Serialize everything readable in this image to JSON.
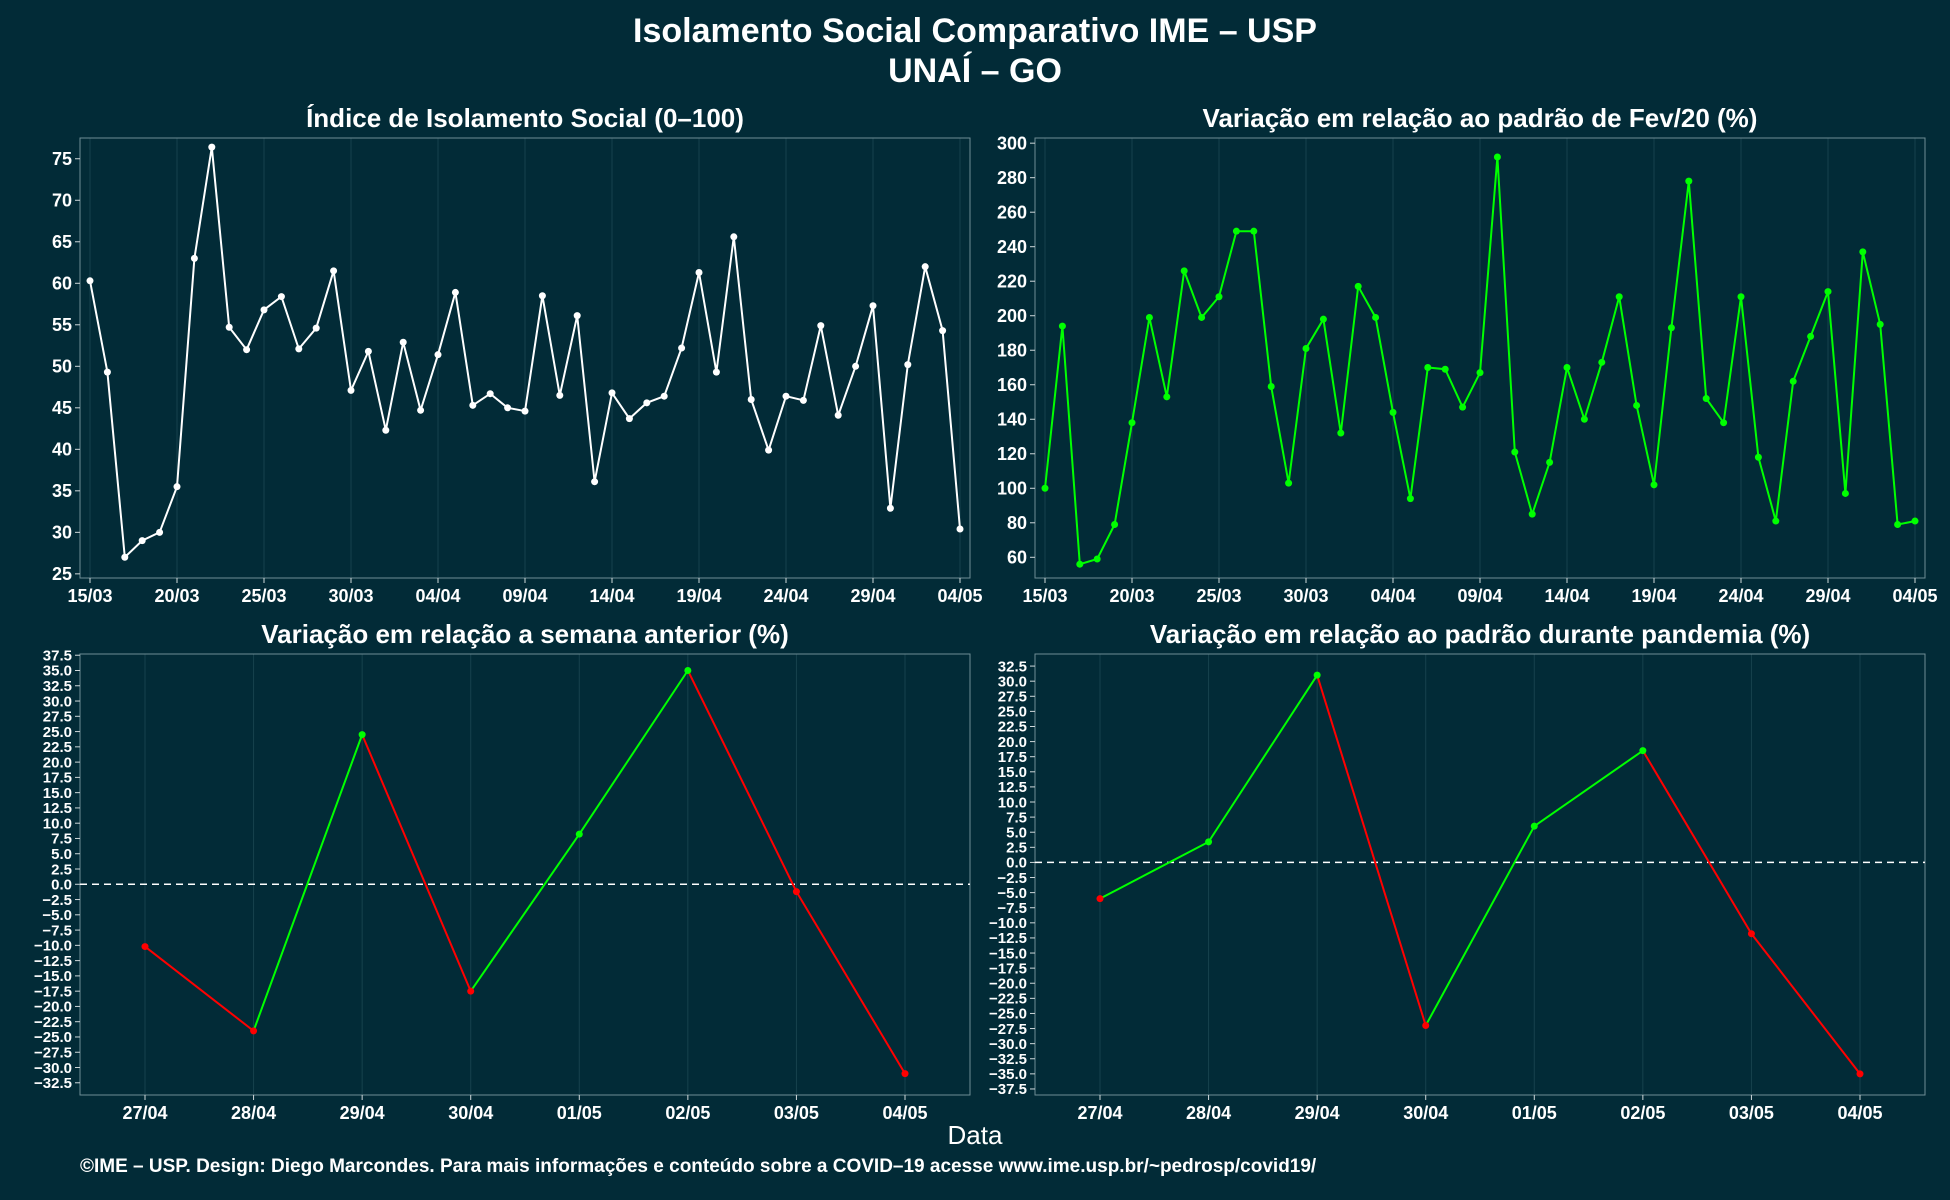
{
  "header": {
    "title": "Isolamento Social Comparativo IME – USP",
    "subtitle": "UNAÍ – GO"
  },
  "xlabel": "Data",
  "footer": "©IME – USP. Design: Diego Marcondes. Para mais informações e conteúdo sobre a COVID–19 acesse www.ime.usp.br/~pedrosp/covid19/",
  "colors": {
    "background": "#022b37",
    "white": "#ffffff",
    "green": "#00ff00",
    "red": "#ff0000",
    "grid": "#17424d"
  },
  "chart_data": [
    {
      "type": "line",
      "title": "Índice de Isolamento Social (0–100)",
      "x_tick_labels": [
        "15/03",
        "20/03",
        "25/03",
        "30/03",
        "04/04",
        "09/04",
        "14/04",
        "19/04",
        "24/04",
        "29/04",
        "04/05"
      ],
      "y_ticks": [
        25,
        30,
        35,
        40,
        45,
        50,
        55,
        60,
        65,
        70,
        75
      ],
      "ylim": [
        24.5,
        77.5
      ],
      "color": "white",
      "values": [
        60.3,
        49.3,
        27.0,
        29.0,
        30.0,
        35.5,
        63.0,
        76.4,
        54.7,
        52.0,
        56.8,
        58.4,
        52.1,
        54.6,
        61.5,
        47.1,
        51.8,
        42.3,
        52.9,
        44.7,
        51.4,
        58.9,
        45.3,
        46.7,
        45.0,
        44.6,
        58.5,
        46.5,
        56.1,
        36.1,
        46.8,
        43.7,
        45.6,
        46.4,
        52.2,
        61.3,
        49.3,
        65.6,
        46.0,
        39.9,
        46.4,
        45.9,
        54.9,
        44.1,
        50.0,
        57.3,
        32.9,
        50.2,
        62.0,
        54.3,
        30.4
      ]
    },
    {
      "type": "line",
      "title": "Variação em relação ao padrão de Fev/20 (%)",
      "x_tick_labels": [
        "15/03",
        "20/03",
        "25/03",
        "30/03",
        "04/04",
        "09/04",
        "14/04",
        "19/04",
        "24/04",
        "29/04",
        "04/05"
      ],
      "y_ticks": [
        60,
        80,
        100,
        120,
        140,
        160,
        180,
        200,
        220,
        240,
        260,
        280,
        300
      ],
      "ylim": [
        48,
        303
      ],
      "color": "green",
      "values": [
        100,
        194,
        56,
        59,
        79,
        138,
        199,
        153,
        226,
        199,
        211,
        249,
        249,
        159,
        103,
        181,
        198,
        132,
        217,
        199,
        144,
        94,
        170,
        169,
        147,
        167,
        292,
        121,
        85,
        115,
        170,
        140,
        173,
        211,
        148,
        102,
        193,
        278,
        152,
        138,
        211,
        118,
        81,
        162,
        188,
        214,
        97,
        237,
        195,
        79,
        81
      ]
    },
    {
      "type": "line",
      "title": "Variação em relação a semana anterior (%)",
      "categories": [
        "27/04",
        "28/04",
        "29/04",
        "30/04",
        "01/05",
        "02/05",
        "03/05",
        "04/05"
      ],
      "values": [
        -10.2,
        -24.0,
        24.5,
        -17.5,
        8.2,
        35.0,
        -1.2,
        -31.0
      ],
      "y_ticks": [
        -32.5,
        -30,
        -27.5,
        -25,
        -22.5,
        -20,
        -17.5,
        -15,
        -12.5,
        -10,
        -7.5,
        -5,
        -2.5,
        0,
        2.5,
        5,
        7.5,
        10,
        12.5,
        15,
        17.5,
        20,
        22.5,
        25,
        27.5,
        30,
        32.5,
        35,
        37.5
      ],
      "ylim": [
        -34.5,
        37.7
      ],
      "reference_line": 0,
      "colors": {
        "up": "green",
        "down": "red"
      }
    },
    {
      "type": "line",
      "title": "Variação em relação ao padrão durante pandemia (%)",
      "categories": [
        "27/04",
        "28/04",
        "29/04",
        "30/04",
        "01/05",
        "02/05",
        "03/05",
        "04/05"
      ],
      "values": [
        -6.0,
        3.4,
        31.0,
        -27.0,
        6.0,
        18.5,
        -11.8,
        -35.0
      ],
      "y_ticks": [
        -37.5,
        -35,
        -32.5,
        -30,
        -27.5,
        -25,
        -22.5,
        -20,
        -17.5,
        -15,
        -12.5,
        -10,
        -7.5,
        -5,
        -2.5,
        0,
        2.5,
        5,
        7.5,
        10,
        12.5,
        15,
        17.5,
        20,
        22.5,
        25,
        27.5,
        30,
        32.5
      ],
      "ylim": [
        -38.5,
        34.5
      ],
      "reference_line": 0,
      "colors": {
        "up": "green",
        "down": "red"
      }
    }
  ]
}
